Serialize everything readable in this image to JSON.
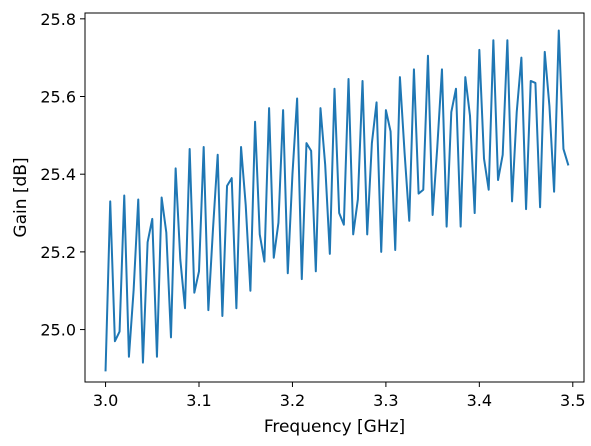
{
  "chart_data": {
    "type": "line",
    "title": "",
    "xlabel": "Frequency [GHz]",
    "ylabel": "Gain [dB]",
    "xlim": [
      2.978,
      3.512
    ],
    "ylim": [
      24.865,
      25.815
    ],
    "xticks": [
      3.0,
      3.1,
      3.2,
      3.3,
      3.4,
      3.5
    ],
    "xtick_labels": [
      "3.0",
      "3.1",
      "3.2",
      "3.3",
      "3.4",
      "3.5"
    ],
    "yticks": [
      25.0,
      25.2,
      25.4,
      25.6,
      25.8
    ],
    "ytick_labels": [
      "25.0",
      "25.2",
      "25.4",
      "25.6",
      "25.8"
    ],
    "grid": false,
    "line_color": "#1f77b4",
    "series": [
      {
        "x": [
          3.0,
          3.005,
          3.01,
          3.015,
          3.02,
          3.025,
          3.03,
          3.035,
          3.04,
          3.045,
          3.05,
          3.055,
          3.06,
          3.065,
          3.07,
          3.075,
          3.08,
          3.085,
          3.09,
          3.095,
          3.1,
          3.105,
          3.11,
          3.115,
          3.12,
          3.125,
          3.13,
          3.135,
          3.14,
          3.145,
          3.15,
          3.155,
          3.16,
          3.165,
          3.17,
          3.175,
          3.18,
          3.185,
          3.19,
          3.195,
          3.2,
          3.205,
          3.21,
          3.215,
          3.22,
          3.225,
          3.23,
          3.235,
          3.24,
          3.245,
          3.25,
          3.255,
          3.26,
          3.265,
          3.27,
          3.275,
          3.28,
          3.285,
          3.29,
          3.295,
          3.3,
          3.305,
          3.31,
          3.315,
          3.32,
          3.325,
          3.33,
          3.335,
          3.34,
          3.345,
          3.35,
          3.355,
          3.36,
          3.365,
          3.37,
          3.375,
          3.38,
          3.385,
          3.39,
          3.395,
          3.4,
          3.405,
          3.41,
          3.415,
          3.42,
          3.425,
          3.43,
          3.435,
          3.44,
          3.445,
          3.45,
          3.455,
          3.46,
          3.465,
          3.47,
          3.475,
          3.48,
          3.485,
          3.49,
          3.495
        ],
        "y": [
          24.895,
          25.33,
          24.97,
          24.995,
          25.345,
          24.93,
          25.1,
          25.335,
          24.915,
          25.225,
          25.285,
          24.93,
          25.34,
          25.25,
          24.98,
          25.415,
          25.18,
          25.055,
          25.465,
          25.095,
          25.15,
          25.47,
          25.05,
          25.26,
          25.45,
          25.035,
          25.37,
          25.39,
          25.055,
          25.47,
          25.32,
          25.1,
          25.535,
          25.245,
          25.175,
          25.57,
          25.185,
          25.275,
          25.565,
          25.145,
          25.4,
          25.595,
          25.13,
          25.48,
          25.46,
          25.15,
          25.57,
          25.425,
          25.195,
          25.62,
          25.3,
          25.27,
          25.645,
          25.245,
          25.335,
          25.64,
          25.245,
          25.48,
          25.585,
          25.2,
          25.565,
          25.51,
          25.205,
          25.65,
          25.455,
          25.28,
          25.67,
          25.35,
          25.36,
          25.705,
          25.295,
          25.47,
          25.67,
          25.265,
          25.56,
          25.62,
          25.265,
          25.65,
          25.55,
          25.3,
          25.72,
          25.44,
          25.36,
          25.745,
          25.385,
          25.45,
          25.745,
          25.33,
          25.56,
          25.7,
          25.31,
          25.64,
          25.635,
          25.315,
          25.715,
          25.575,
          25.355,
          25.77,
          25.465,
          25.425
        ]
      }
    ]
  }
}
